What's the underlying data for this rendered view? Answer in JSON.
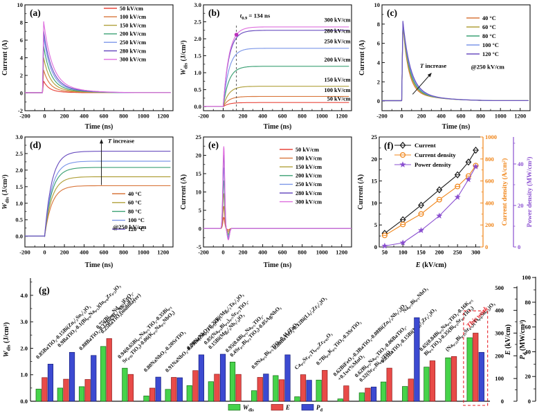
{
  "figure": {
    "background": "#ffffff",
    "tags": [
      "(a)",
      "(b)",
      "(c)",
      "(d)",
      "(e)",
      "(f)",
      "(g)"
    ]
  },
  "chart_data": [
    {
      "id": "a",
      "type": "line",
      "ctype": "pulse",
      "tag": "(a)",
      "title": "",
      "xlabel": "Time (ns)",
      "ylabel": "Current (A)",
      "xlim": [
        -200,
        1300
      ],
      "ylim": [
        -2,
        10
      ],
      "xticks": [
        -200,
        0,
        200,
        400,
        600,
        800,
        1000,
        1200
      ],
      "yticks": [
        -2,
        0,
        2,
        4,
        6,
        8,
        10
      ],
      "legend_position": "top-right",
      "series": [
        {
          "label": "50 kV/cm",
          "color": "#e8463c",
          "peak": 1.35
        },
        {
          "label": "100 kV/cm",
          "color": "#d9773c",
          "peak": 2.6
        },
        {
          "label": "150 kV/cm",
          "color": "#b0a03a",
          "peak": 4.0
        },
        {
          "label": "200 kV/cm",
          "color": "#3aa073",
          "peak": 5.3
        },
        {
          "label": "250 kV/cm",
          "color": "#7b96e8",
          "peak": 6.4
        },
        {
          "label": "280 kV/cm",
          "color": "#6a4fc0",
          "peak": 7.0
        },
        {
          "label": "300 kV/cm",
          "color": "#de6ede",
          "peak": 8.1
        }
      ]
    },
    {
      "id": "b",
      "type": "line",
      "ctype": "rise",
      "tag": "(b)",
      "xlabel": "Time (ns)",
      "ylabel": "~W~_dis_ (J/cm³)",
      "xlim": [
        -200,
        1300
      ],
      "ylim": [
        -0.12,
        3.0
      ],
      "xticks": [
        -200,
        0,
        200,
        400,
        600,
        800,
        1000,
        1200
      ],
      "yticks": [
        0.0,
        0.5,
        1.0,
        1.5,
        2.0,
        2.5,
        3.0
      ],
      "yticklabels": [
        "0.0",
        "0.5",
        "1.0",
        "1.5",
        "2.0",
        "2.5",
        "3.0"
      ],
      "series": [
        {
          "label": "50 kV/cm",
          "color": "#e8463c",
          "sat": 0.12
        },
        {
          "label": "100 kV/cm",
          "color": "#d9773c",
          "sat": 0.3
        },
        {
          "label": "150 kV/cm",
          "color": "#b0a03a",
          "sat": 0.6
        },
        {
          "label": "200 kV/cm",
          "color": "#3aa073",
          "sat": 1.19
        },
        {
          "label": "250 kV/cm",
          "color": "#7b96e8",
          "sat": 1.72
        },
        {
          "label": "280 kV/cm",
          "color": "#6a4fc0",
          "sat": 2.25
        },
        {
          "label": "300 kV/cm",
          "color": "#de6ede",
          "sat": 2.35
        }
      ],
      "end_labels": [
        {
          "text": "300 kV/cm",
          "y": 2.5
        },
        {
          "text": "280 kV/cm",
          "y": 2.17
        },
        {
          "text": "250 kV/cm",
          "y": 1.87
        },
        {
          "text": "200 kV/cm",
          "y": 1.33
        },
        {
          "text": "150 kV/cm",
          "y": 0.74
        },
        {
          "text": "100 kV/cm",
          "y": 0.43
        },
        {
          "text": "50 kV/cm",
          "y": 0.18
        }
      ],
      "annotations": [
        {
          "type": "vline",
          "x": 134,
          "y1": -0.12,
          "y2": 2.45
        },
        {
          "type": "dot",
          "x": 134,
          "y": 2.12,
          "color": "#bb2fbb"
        },
        {
          "type": "text",
          "text": "~t~_0.9_ = 134 ns",
          "x": 170,
          "y": 2.62
        }
      ]
    },
    {
      "id": "c",
      "type": "line",
      "ctype": "pulse",
      "tag": "(c)",
      "xlabel": "Time (ns)",
      "ylabel": "Current (A)",
      "xlim": [
        -200,
        1300
      ],
      "ylim": [
        -1,
        10
      ],
      "xticks": [
        -200,
        0,
        200,
        400,
        600,
        800,
        1000,
        1200
      ],
      "yticks": [
        0,
        2,
        4,
        6,
        8,
        10
      ],
      "series": [
        {
          "label": "40 °C",
          "color": "#d9773c",
          "peak": 7.9
        },
        {
          "label": "60 °C",
          "color": "#b0a03a",
          "peak": 8.0
        },
        {
          "label": "80 °C",
          "color": "#3aa073",
          "peak": 8.1
        },
        {
          "label": "100 °C",
          "color": "#7b96e8",
          "peak": 8.2
        },
        {
          "label": "120 °C",
          "color": "#6a4fc0",
          "peak": 8.3
        }
      ],
      "annotations": [
        {
          "type": "arrow",
          "x1": 110,
          "y1": 0.7,
          "x2": 300,
          "y2": 2.9
        },
        {
          "type": "text",
          "text": "~T~ increase",
          "x": 185,
          "y": 3.45
        },
        {
          "type": "text",
          "text": "@250 kV/cm",
          "x": 700,
          "y": 3.35
        }
      ]
    },
    {
      "id": "d",
      "type": "line",
      "ctype": "rise",
      "tag": "(d)",
      "xlabel": "Time (ns)",
      "ylabel": "~W~_dis_ (J/cm³)",
      "xlim": [
        -200,
        1300
      ],
      "ylim": [
        -0.32,
        3.0
      ],
      "xticks": [
        -200,
        0,
        200,
        400,
        600,
        800,
        1000,
        1200
      ],
      "yticks": [
        0.0,
        0.5,
        1.0,
        1.5,
        2.0,
        2.5,
        3.0
      ],
      "yticklabels": [
        "0.0",
        "0.5",
        "1.0",
        "1.5",
        "2.0",
        "2.5",
        "3.0"
      ],
      "legend_position": "mid-right",
      "series": [
        {
          "label": "40 °C",
          "color": "#d9773c",
          "sat": 1.53
        },
        {
          "label": "60 °C",
          "color": "#b0a03a",
          "sat": 1.8
        },
        {
          "label": "80 °C",
          "color": "#3aa073",
          "sat": 2.08
        },
        {
          "label": "100 °C",
          "color": "#7b96e8",
          "sat": 2.27
        },
        {
          "label": "120 °C",
          "color": "#6a4fc0",
          "sat": 2.57
        }
      ],
      "annotations": [
        {
          "type": "arrow",
          "x1": 575,
          "y1": 1.55,
          "x2": 575,
          "y2": 2.92
        },
        {
          "type": "text",
          "text": "~T~ increase",
          "x": 640,
          "y": 2.82
        },
        {
          "type": "text",
          "text": "@250 kV/cm",
          "x": 690,
          "y": 0.22
        }
      ]
    },
    {
      "id": "e",
      "type": "line",
      "ctype": "spike",
      "tag": "(e)",
      "xlabel": "Time (ns)",
      "ylabel": "Current (A)",
      "xlim": [
        -200,
        1300
      ],
      "ylim": [
        -5,
        25
      ],
      "xticks": [
        -200,
        0,
        200,
        400,
        600,
        800,
        1000,
        1200
      ],
      "yticks": [
        -5,
        0,
        5,
        10,
        15,
        20,
        25
      ],
      "legend_position": "top-right",
      "series": [
        {
          "label": "50 kV/cm",
          "color": "#e8463c",
          "peak": 3.0
        },
        {
          "label": "100 kV/cm",
          "color": "#d9773c",
          "peak": 6.0
        },
        {
          "label": "150 kV/cm",
          "color": "#b0a03a",
          "peak": 9.5
        },
        {
          "label": "200 kV/cm",
          "color": "#3aa073",
          "peak": 13.0
        },
        {
          "label": "250 kV/cm",
          "color": "#7b96e8",
          "peak": 16.5
        },
        {
          "label": "280 kV/cm",
          "color": "#6a4fc0",
          "peak": 20.0
        },
        {
          "label": "300 kV/cm",
          "color": "#de6ede",
          "peak": 22.3
        }
      ]
    },
    {
      "id": "f",
      "type": "scatter",
      "tag": "(f)",
      "xlabel": "~E~ (kV/cm)",
      "xlim": [
        35,
        320
      ],
      "xticks": [
        50,
        100,
        150,
        200,
        250,
        300
      ],
      "x": [
        50,
        100,
        150,
        200,
        250,
        280,
        300
      ],
      "axes": [
        {
          "label": "Current (A)",
          "color": "#1a1a1a",
          "lim": [
            0,
            25
          ],
          "ticks": [
            0,
            5,
            10,
            15,
            20,
            25
          ]
        },
        {
          "label": "Current density (A/cm²)",
          "color": "#f08519",
          "lim": [
            0,
            1000
          ],
          "ticks": [
            0,
            200,
            400,
            600,
            800,
            1000
          ]
        },
        {
          "label": "Power density (MW/cm³)",
          "color": "#8a4fd0",
          "lim": [
            0,
            53
          ],
          "ticks": [
            0,
            20,
            40
          ]
        }
      ],
      "series": [
        {
          "label": "Current",
          "axis": 0,
          "marker": "diamond",
          "color": "#1a1a1a",
          "values": [
            3.1,
            6.2,
            9.5,
            13.0,
            16.4,
            19.3,
            22.0
          ]
        },
        {
          "label": "Current density",
          "axis": 1,
          "marker": "circle",
          "color": "#f08519",
          "values": [
            105,
            205,
            300,
            430,
            550,
            645,
            740
          ]
        },
        {
          "label": "Power density",
          "axis": 2,
          "marker": "star",
          "color": "#8a4fd0",
          "values": [
            0.5,
            2.0,
            8.0,
            15.0,
            24.0,
            32.5,
            38.7
          ]
        }
      ]
    },
    {
      "id": "g",
      "type": "bar",
      "tag": "(g)",
      "axis_w": {
        "label": "~W~_dis_ (J/cm³)",
        "lim": [
          0,
          4.65
        ],
        "ticks": [
          0.0,
          1.0,
          2.0,
          3.0,
          4.0
        ],
        "ticklabels": [
          "0.0",
          "1.0",
          "2.0",
          "3.0",
          "4.0"
        ],
        "color": "#1a1a1a"
      },
      "axis_e": {
        "label": "~E~ (kV/cm)",
        "lim": [
          0,
          542
        ],
        "ticks": [
          0,
          100,
          200,
          300,
          400,
          500
        ],
        "color": "#1a1a1a"
      },
      "axis_p": {
        "label": "~P~_d_ (MW/cm³)",
        "lim": [
          0,
          99.5
        ],
        "ticks": [
          0,
          20,
          40,
          60,
          80,
          100
        ],
        "color": "#1a1a1a"
      },
      "bar_colors": {
        "wdis": "#46d34a",
        "e": "#e84b48",
        "pd": "#3c4ad1"
      },
      "highlight_color": "#e8232a",
      "legend": [
        {
          "key": "wdis",
          "label": "~W~_dis_"
        },
        {
          "key": "e",
          "label": "~E~"
        },
        {
          "key": "pd",
          "label": "~P~_d_"
        }
      ],
      "groups": [
        {
          "lines": [
            "0.85BaTiO₃-0.15Bi(Zn₁/₂Sn₁/₂)O₃"
          ],
          "wdis": 0.46,
          "e": 104,
          "pd": 30
        },
        {
          "lines": [
            "0.9BaTiO₃-0.1(Bi₀.₉Na₀.₁)(In₀.₈Zr₀.₂)O₃"
          ],
          "wdis": 0.5,
          "e": 97,
          "pd": 39.5
        },
        {
          "lines": [
            "0.88BaTiO₃-0.12Bi(Ni₁/₂Nb₁/₂)O₃"
          ],
          "wdis": 0.55,
          "e": 96,
          "pd": 37
        },
        {
          "lines": [
            "0.75(Bi₀.₈₅Nd₀.₁₅)FeO₃-",
            "0.25BaTiO₃(multilayer)"
          ],
          "wdis": 2.07,
          "e": 276,
          "pd": null
        },
        {
          "lines": [
            "0.94(0.65Bi₀.₅Na₀.₅TiO₃-0.35Bi₀.₁",
            "Sr₀.₈₅TiO₃)-0.06(K₀.₅Na₀.₅NbO₃)"
          ],
          "wdis": 1.25,
          "e": 118,
          "pd": null
        },
        {
          "lines": [
            "0.80NaNbO₃-0.20SrTiO₃"
          ],
          "wdis": 0.2,
          "e": 58,
          "pd": 19.5
        },
        {
          "lines": [
            "0.91NaNbO₃-0.09Bi(Zn₀.₅Ti₀.₅)O₃"
          ],
          "wdis": 0.45,
          "e": 105,
          "pd": 19
        },
        {
          "lines": [
            "0.78NaNbO₃-0.22Bi(Mg₂/₃Ta₁/₃)O₃"
          ],
          "wdis": 0.59,
          "e": 135,
          "pd": 37.5
        },
        {
          "lines": [
            "0.85(Na₀.₅Bi₀.₅)₀.₇Sr₀.₃TiO₃-",
            "0.15Bi(Mg₂/₃Nb₁/₃)O₃"
          ],
          "wdis": 0.74,
          "e": 119,
          "pd": 38
        },
        {
          "lines": [
            "0.95(0.6Bi₀.₅Na₀.₅TiO₃-",
            "0.4Sr₀.₇Bi₀.₂TiO₃)-0.05AgNbO₃"
          ],
          "wdis": 1.48,
          "e": 118,
          "pd": null
        },
        {
          "lines": [
            "0.9Na₀.₅Bi₀.₅TiO₃-0.1LiTaO₃"
          ],
          "wdis": 0.4,
          "e": 105,
          "pd": 22
        },
        {
          "lines": [
            "0.88BaTiO₃-0.12Bi(Li₁/₃Zr₂/₃)O₃"
          ],
          "wdis": 0.97,
          "e": 95,
          "pd": 37.5
        },
        {
          "lines": [
            "Ca₀.₅Sr₀.₅Ti₀.₉₅Zr₀.₀₅O₃"
          ],
          "wdis": 0.17,
          "e": 117,
          "pd": 17
        },
        {
          "lines": [
            "0.7Bi₀.₅K₀.₅TiO₃-0.3SrTiO₃"
          ],
          "wdis": 0.8,
          "e": 136,
          "pd": null
        },
        {
          "lines": [
            "0.62BiFeO₃-0.3BaTiO₃-0.08Bi(Zn₂/₃Nb₁/₃)O₃",
            "+0.1wt%MnO₂"
          ],
          "wdis": 0.09,
          "e": 68,
          "pd": null
        },
        {
          "lines": [
            "0.62Bi₀.₅Na₀.₅TiO₃-0.06BaTiO₃-",
            "0.32(Sr₀.₇Bi₀.₂)TiO₃"
          ],
          "wdis": 0.32,
          "e": 58,
          "pd": 11.5
        },
        {
          "lines": [
            "0.85BaTiO₃-0.15Bi(Mg₁/₂Zr₁/₂)O₃"
          ],
          "wdis": 0.73,
          "e": 146,
          "pd": null
        },
        {
          "lines": [
            "Na₀.₇Bi₀.₁NbO₃"
          ],
          "wdis": 0.56,
          "e": 98,
          "pd": 67.5
        },
        {
          "lines": [
            "0.65(0.84Bi₀.₅Na₀.₅TiO₃-0.16K₀.₅",
            "Bi₀.₅TiO₃)-0.35(Bi₀.₂Sr₀.₇TiO₃)"
          ],
          "wdis": 1.29,
          "e": 178,
          "pd": null
        },
        {
          "lines": [
            "(Na₀.₂₅Bi₀.₂₅Sr₀.₅)(Ti₀.₈Sn₀.₂)O₃"
          ],
          "wdis": 1.64,
          "e": 197,
          "pd": null
        },
        {
          "lines": [
            "This work"
          ],
          "wdis": 2.4,
          "e": 300,
          "pd": 39.5,
          "highlight": true
        }
      ]
    }
  ]
}
